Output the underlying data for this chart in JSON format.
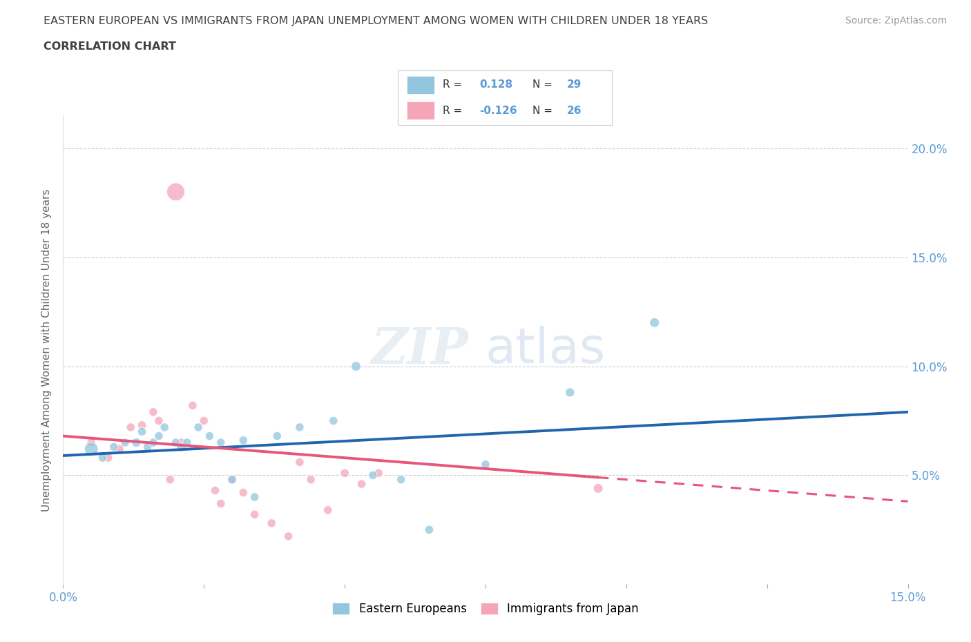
{
  "title_line1": "EASTERN EUROPEAN VS IMMIGRANTS FROM JAPAN UNEMPLOYMENT AMONG WOMEN WITH CHILDREN UNDER 18 YEARS",
  "title_line2": "CORRELATION CHART",
  "source": "Source: ZipAtlas.com",
  "ylabel": "Unemployment Among Women with Children Under 18 years",
  "xlim": [
    0.0,
    0.15
  ],
  "ylim": [
    0.0,
    0.215
  ],
  "watermark_zip": "ZIP",
  "watermark_atlas": "atlas",
  "blue_color": "#92c5de",
  "pink_color": "#f4a6b8",
  "blue_line_color": "#2166ac",
  "pink_line_color": "#e8547a",
  "r_blue": 0.128,
  "n_blue": 29,
  "r_pink": -0.126,
  "n_pink": 26,
  "blue_scatter_x": [
    0.005,
    0.007,
    0.009,
    0.011,
    0.013,
    0.014,
    0.015,
    0.016,
    0.017,
    0.018,
    0.02,
    0.021,
    0.022,
    0.024,
    0.026,
    0.028,
    0.03,
    0.032,
    0.034,
    0.038,
    0.042,
    0.048,
    0.052,
    0.055,
    0.06,
    0.065,
    0.075,
    0.09,
    0.105
  ],
  "blue_scatter_y": [
    0.062,
    0.058,
    0.063,
    0.065,
    0.065,
    0.07,
    0.063,
    0.065,
    0.068,
    0.072,
    0.065,
    0.063,
    0.065,
    0.072,
    0.068,
    0.065,
    0.048,
    0.066,
    0.04,
    0.068,
    0.072,
    0.075,
    0.1,
    0.05,
    0.048,
    0.025,
    0.055,
    0.088,
    0.12
  ],
  "blue_scatter_size": [
    200,
    80,
    80,
    80,
    90,
    80,
    80,
    80,
    80,
    80,
    80,
    90,
    80,
    80,
    80,
    80,
    80,
    80,
    80,
    80,
    80,
    80,
    100,
    80,
    80,
    80,
    80,
    90,
    100
  ],
  "pink_scatter_x": [
    0.005,
    0.008,
    0.01,
    0.012,
    0.014,
    0.016,
    0.017,
    0.019,
    0.021,
    0.023,
    0.025,
    0.027,
    0.028,
    0.03,
    0.032,
    0.034,
    0.037,
    0.04,
    0.042,
    0.044,
    0.047,
    0.05,
    0.053,
    0.056,
    0.095,
    0.02
  ],
  "pink_scatter_y": [
    0.065,
    0.058,
    0.062,
    0.072,
    0.073,
    0.079,
    0.075,
    0.048,
    0.065,
    0.082,
    0.075,
    0.043,
    0.037,
    0.048,
    0.042,
    0.032,
    0.028,
    0.022,
    0.056,
    0.048,
    0.034,
    0.051,
    0.046,
    0.051,
    0.044,
    0.18
  ],
  "pink_scatter_size": [
    80,
    80,
    80,
    80,
    80,
    80,
    80,
    80,
    80,
    80,
    80,
    80,
    80,
    80,
    80,
    80,
    80,
    80,
    80,
    80,
    80,
    80,
    80,
    80,
    100,
    350
  ],
  "grid_color": "#cccccc",
  "bg_color": "#ffffff",
  "title_color": "#404040",
  "axis_color": "#5b9bd5",
  "trend_blue_x0": 0.0,
  "trend_blue_y0": 0.059,
  "trend_blue_x1": 0.15,
  "trend_blue_y1": 0.079,
  "trend_pink_x0": 0.0,
  "trend_pink_y0": 0.068,
  "trend_pink_x1": 0.15,
  "trend_pink_y1": 0.038,
  "trend_pink_solid_end": 0.095,
  "trend_pink_dash_end": 0.15
}
